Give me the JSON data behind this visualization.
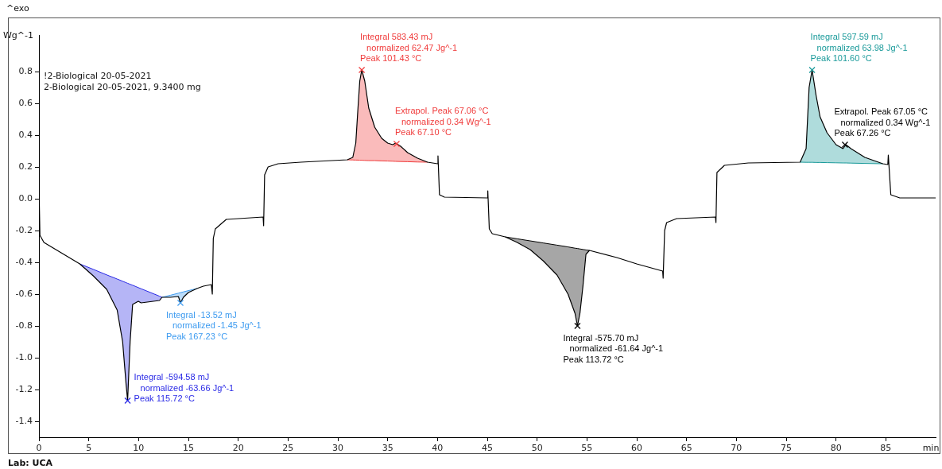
{
  "chart_data": {
    "type": "line",
    "xlabel": "min",
    "ylabel": "Wg^-1",
    "xlim": [
      0,
      90
    ],
    "ylim": [
      -1.5,
      1.03
    ],
    "xticks": [
      0,
      5,
      10,
      15,
      20,
      25,
      30,
      35,
      40,
      45,
      50,
      55,
      60,
      65,
      70,
      75,
      80,
      85
    ],
    "yticks": [
      {
        "value": -1.4,
        "label": "-1.4"
      },
      {
        "value": -1.2,
        "label": "-1.2"
      },
      {
        "value": -1,
        "label": "-1.0"
      },
      {
        "value": -0.8,
        "label": "-0.8"
      },
      {
        "value": -0.6,
        "label": "-0.6"
      },
      {
        "value": -0.4,
        "label": "-0.4"
      },
      {
        "value": -0.2,
        "label": "-0.2"
      },
      {
        "value": 0,
        "label": "0.0"
      },
      0.2,
      0.4,
      0.6,
      0.8
    ],
    "grid": false,
    "legend": false,
    "marker": "none",
    "series": [
      {
        "type": "line",
        "color": "#000000",
        "x": [
          0,
          0.1,
          0.5,
          4.1,
          5.45,
          6.8,
          7.85,
          8.4,
          8.75,
          8.9,
          9.15,
          9.4,
          9.97,
          10.25,
          12.1,
          12.35,
          13.2,
          14.0,
          14.2,
          14.5,
          15.0,
          15.85,
          16.5,
          17.3,
          17.4,
          17.5,
          17.7,
          18.8,
          22.5,
          22.55,
          22.65,
          23,
          24,
          26.3,
          30.95,
          31.5,
          31.8,
          32.0,
          32.2,
          32.4,
          32.7,
          33.1,
          33.7,
          34.4,
          35.0,
          35.5,
          35.8,
          36.3,
          37.0,
          38.0,
          39.0,
          40.0,
          40.05,
          40.2,
          40.7,
          45.0,
          45.05,
          45.2,
          45.5,
          46.8,
          48,
          49.3,
          50.6,
          52,
          53.1,
          53.8,
          54.05,
          54.3,
          54.6,
          54.9,
          55.25,
          58,
          60,
          62.6,
          62.65,
          62.8,
          63.0,
          64,
          67.9,
          67.95,
          68.05,
          68.8,
          71.2,
          76.4,
          77.0,
          77.3,
          77.6,
          78.0,
          78.4,
          79.1,
          80.0,
          80.7,
          81.0,
          81.5,
          82.9,
          84.7,
          85.2,
          85.25,
          85.5,
          86.4,
          90
        ],
        "values": [
          0.085,
          -0.23,
          -0.275,
          -0.41,
          -0.485,
          -0.57,
          -0.7,
          -0.9,
          -1.17,
          -1.27,
          -0.9,
          -0.665,
          -0.645,
          -0.655,
          -0.64,
          -0.62,
          -0.62,
          -0.615,
          -0.655,
          -0.62,
          -0.59,
          -0.565,
          -0.55,
          -0.54,
          -0.6,
          -0.25,
          -0.19,
          -0.13,
          -0.115,
          -0.17,
          0.15,
          0.2,
          0.22,
          0.23,
          0.245,
          0.26,
          0.35,
          0.55,
          0.74,
          0.81,
          0.74,
          0.57,
          0.45,
          0.38,
          0.35,
          0.34,
          0.35,
          0.33,
          0.29,
          0.255,
          0.23,
          0.22,
          0.27,
          0.025,
          0.01,
          0.005,
          0.05,
          -0.19,
          -0.22,
          -0.24,
          -0.275,
          -0.32,
          -0.39,
          -0.48,
          -0.6,
          -0.72,
          -0.8,
          -0.72,
          -0.55,
          -0.35,
          -0.325,
          -0.37,
          -0.41,
          -0.455,
          -0.5,
          -0.2,
          -0.15,
          -0.125,
          -0.115,
          -0.15,
          0.165,
          0.21,
          0.225,
          0.23,
          0.315,
          0.7,
          0.81,
          0.65,
          0.515,
          0.415,
          0.34,
          0.315,
          0.34,
          0.315,
          0.26,
          0.22,
          0.215,
          0.275,
          0.025,
          0.005,
          0.005
        ]
      },
      {
        "type": "line",
        "color": "#2a2ae6",
        "x": [
          4.1,
          5.45,
          6.8,
          7.85,
          8.4,
          8.75,
          8.9,
          9.15,
          9.4,
          9.97,
          10.25,
          12.1,
          12.35
        ],
        "values": [
          -0.41,
          -0.444,
          -0.479,
          -0.505,
          -0.519,
          -0.528,
          -0.532,
          -0.538,
          -0.544,
          -0.559,
          -0.566,
          -0.613,
          -0.62
        ],
        "lower": [
          -0.41,
          -0.485,
          -0.57,
          -0.7,
          -0.9,
          -1.17,
          -1.27,
          -0.9,
          -0.665,
          -0.645,
          -0.655,
          -0.64,
          -0.62
        ],
        "upper": [
          -0.41,
          -0.444,
          -0.479,
          -0.505,
          -0.519,
          -0.528,
          -0.532,
          -0.538,
          -0.544,
          -0.559,
          -0.566,
          -0.613,
          -0.62
        ]
      },
      {
        "type": "line",
        "color": "#3d9bf0",
        "x": [
          12.35,
          13.2,
          14.0,
          14.2,
          14.5,
          15.0,
          15.85
        ],
        "values": [
          -0.62,
          -0.607,
          -0.594,
          -0.591,
          -0.586,
          -0.578,
          -0.565
        ],
        "lower": [
          -0.62,
          -0.62,
          -0.615,
          -0.655,
          -0.62,
          -0.59,
          -0.565
        ],
        "upper": [
          -0.62,
          -0.607,
          -0.594,
          -0.591,
          -0.586,
          -0.578,
          -0.565
        ]
      },
      {
        "type": "line",
        "color": "#f03c3c",
        "x": [
          30.95,
          31.5,
          31.8,
          32.0,
          32.2,
          32.4,
          32.7,
          33.1,
          33.7,
          34.4,
          35.0,
          35.5,
          35.8,
          36.3,
          37.0,
          38.0,
          39.0
        ],
        "values": [
          0.245,
          0.244,
          0.243,
          0.243,
          0.242,
          0.242,
          0.241,
          0.24,
          0.24,
          0.238,
          0.237,
          0.236,
          0.235,
          0.234,
          0.233,
          0.231,
          0.23
        ],
        "lower": [
          0.245,
          0.244,
          0.243,
          0.243,
          0.242,
          0.242,
          0.241,
          0.24,
          0.24,
          0.238,
          0.237,
          0.236,
          0.235,
          0.234,
          0.233,
          0.231,
          0.23
        ],
        "upper": [
          0.245,
          0.26,
          0.35,
          0.55,
          0.74,
          0.81,
          0.74,
          0.57,
          0.45,
          0.38,
          0.35,
          0.34,
          0.35,
          0.33,
          0.29,
          0.255,
          0.23
        ]
      },
      {
        "type": "line",
        "color": "#000000",
        "x": [
          46.8,
          48,
          49.3,
          50.6,
          52,
          53.1,
          53.8,
          54.05,
          54.3,
          54.6,
          54.9,
          55.25
        ],
        "values": [
          -0.24,
          -0.252,
          -0.265,
          -0.278,
          -0.292,
          -0.303,
          -0.311,
          -0.313,
          -0.316,
          -0.319,
          -0.322,
          -0.325
        ],
        "lower": [
          -0.24,
          -0.275,
          -0.32,
          -0.39,
          -0.48,
          -0.6,
          -0.72,
          -0.8,
          -0.72,
          -0.55,
          -0.35,
          -0.325
        ],
        "upper": [
          -0.24,
          -0.252,
          -0.265,
          -0.278,
          -0.292,
          -0.303,
          -0.311,
          -0.313,
          -0.316,
          -0.319,
          -0.322,
          -0.325
        ]
      },
      {
        "type": "line",
        "color": "#1a9a9a",
        "x": [
          76.4,
          77.0,
          77.3,
          77.6,
          78.0,
          78.4,
          79.1,
          80.0,
          80.7,
          81.0,
          81.5,
          82.9,
          84.7
        ],
        "values": [
          0.23,
          0.229,
          0.229,
          0.229,
          0.228,
          0.228,
          0.227,
          0.226,
          0.225,
          0.225,
          0.224,
          0.222,
          0.22
        ],
        "lower": [
          0.23,
          0.229,
          0.229,
          0.229,
          0.228,
          0.228,
          0.227,
          0.226,
          0.225,
          0.225,
          0.224,
          0.222,
          0.22
        ],
        "upper": [
          0.23,
          0.315,
          0.7,
          0.81,
          0.65,
          0.515,
          0.415,
          0.34,
          0.315,
          0.34,
          0.315,
          0.26,
          0.22
        ]
      },
      {
        "type": "scatter",
        "marker": "cross",
        "x": [
          8.9,
          14.2,
          32.4,
          35.9,
          54.05,
          77.6,
          80.9
        ],
        "values": [
          -1.27,
          -0.655,
          0.81,
          0.345,
          -0.8,
          0.81,
          0.34
        ],
        "colors": [
          "#2a2ae6",
          "#3d9bf0",
          "#f03c3c",
          "#f03c3c",
          "#000000",
          "#1a9a9a",
          "#000000"
        ]
      }
    ],
    "annotations": [
      "^exo",
      "Lab: UCA",
      "!2-Biological 20-05-2021",
      "2-Biological 20-05-2021, 9.3400 mg",
      {
        "text": "Peak 115.72 °C",
        "x": 8.9,
        "y": -1.27
      },
      "Integral -594.58 mJ",
      "normalized -63.66 Jg^-1",
      {
        "text": "Integral -13.52 mJ",
        "x": 14.2,
        "y": -0.655
      },
      "normalized -1.45 Jg^-1",
      "Peak 167.23 °C",
      {
        "text": "Peak 101.43 °C",
        "x": 32.4,
        "y": 0.81
      },
      "Integral 583.43 mJ",
      "normalized 62.47 Jg^-1",
      {
        "text": "Peak 67.10 °C",
        "x": 35.9,
        "y": 0.345
      },
      "Extrapol. Peak 67.06 °C",
      "normalized 0.34 Wg^-1",
      {
        "text": "Integral -575.70 mJ",
        "x": 54.05,
        "y": -0.8
      },
      "normalized -61.64 Jg^-1",
      "Peak 113.72 °C",
      {
        "text": "Peak 101.60 °C",
        "x": 77.6,
        "y": 0.81
      },
      "Integral 597.59 mJ",
      "normalized 63.98 Jg^-1",
      {
        "text": "Peak 67.26 °C",
        "x": 80.9,
        "y": 0.34
      },
      "Extrapol. Peak 67.05 °C",
      "normalized 0.34 Wg^-1"
    ]
  }
}
